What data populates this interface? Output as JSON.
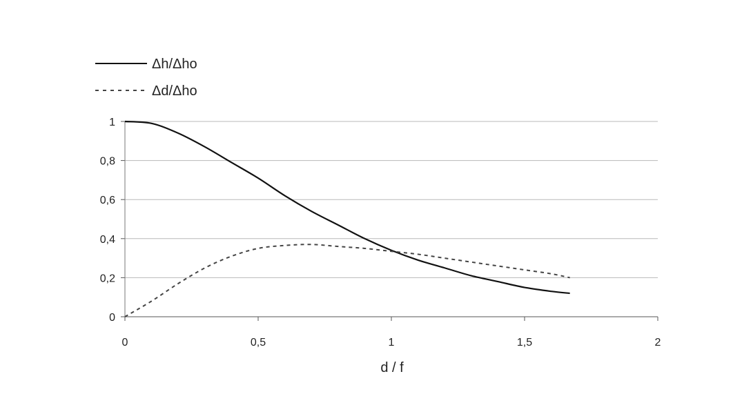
{
  "chart_data": {
    "type": "line",
    "title": "",
    "xlabel": "d / f",
    "ylabel": "",
    "xlim": [
      0,
      2
    ],
    "ylim": [
      0,
      1
    ],
    "x_ticks": [
      "0",
      "0,5",
      "1",
      "1,5",
      "2"
    ],
    "y_ticks": [
      "0",
      "0,2",
      "0,4",
      "0,6",
      "0,8",
      "1"
    ],
    "grid": "horizontal",
    "legend": "top-left",
    "series": [
      {
        "name": "Δh/Δho",
        "style": "solid",
        "color": "#111111",
        "x": [
          0,
          0.1,
          0.2,
          0.3,
          0.4,
          0.5,
          0.6,
          0.7,
          0.8,
          0.9,
          1.0,
          1.1,
          1.2,
          1.3,
          1.4,
          1.5,
          1.6,
          1.67
        ],
        "y": [
          1.0,
          0.99,
          0.94,
          0.87,
          0.79,
          0.71,
          0.62,
          0.54,
          0.47,
          0.4,
          0.34,
          0.29,
          0.25,
          0.21,
          0.18,
          0.15,
          0.13,
          0.12
        ]
      },
      {
        "name": "Δd/Δho",
        "style": "dashed",
        "color": "#444444",
        "x": [
          0,
          0.1,
          0.2,
          0.3,
          0.4,
          0.5,
          0.6,
          0.7,
          0.8,
          0.9,
          1.0,
          1.1,
          1.2,
          1.3,
          1.4,
          1.5,
          1.6,
          1.67
        ],
        "y": [
          0.0,
          0.08,
          0.17,
          0.25,
          0.31,
          0.35,
          0.365,
          0.37,
          0.36,
          0.35,
          0.335,
          0.32,
          0.3,
          0.28,
          0.26,
          0.24,
          0.22,
          0.2
        ]
      }
    ]
  }
}
